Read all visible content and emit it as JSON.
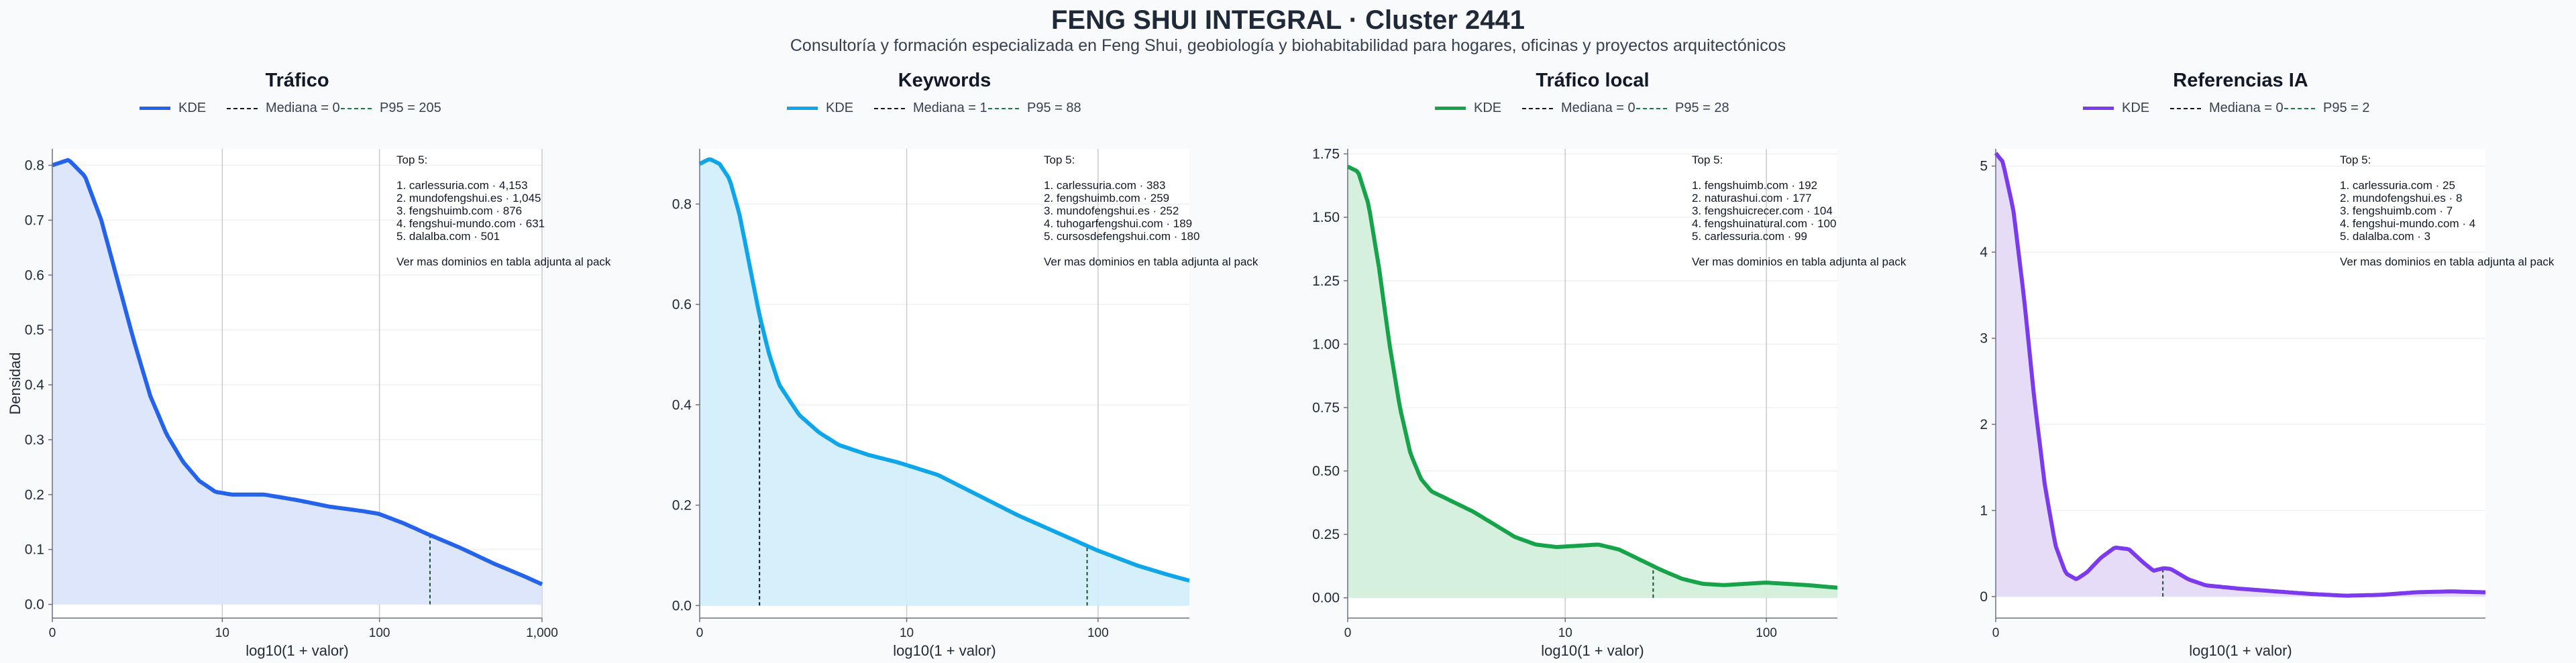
{
  "title": "FENG SHUI INTEGRAL · Cluster 2441",
  "subtitle": "Consultoría y formación especializada en Feng Shui, geobiología y biohabitabilidad para hogares, oficinas y proyectos arquitectónicos",
  "ylabel_shared": "Densidad",
  "chart_data": [
    {
      "type": "line",
      "title": "Tráfico",
      "xlabel": "log10(1 + valor)",
      "ylabel": "Densidad",
      "x_scale": "log10(1+x)",
      "x_ticks": [
        0,
        10,
        100,
        1000
      ],
      "x_tick_labels": [
        "0",
        "10",
        "100",
        "1,000"
      ],
      "x_max": 1000,
      "ylim": [
        -0.025,
        0.83
      ],
      "y_ticks": [
        0.0,
        0.1,
        0.2,
        0.3,
        0.4,
        0.5,
        0.6,
        0.7,
        0.8
      ],
      "y_tick_labels": [
        "0.0",
        "0.1",
        "0.2",
        "0.3",
        "0.4",
        "0.5",
        "0.6",
        "0.7",
        "0.8"
      ],
      "color": "#2563eb",
      "fill": "#dbe5fb",
      "legend": {
        "kde": "KDE",
        "median": "Mediana = 0",
        "p95": "P95 = 205"
      },
      "median": 0,
      "p95": 205,
      "kde": [
        [
          0,
          0.8
        ],
        [
          0.1,
          0.81
        ],
        [
          0.2,
          0.78
        ],
        [
          0.3,
          0.7
        ],
        [
          0.4,
          0.59
        ],
        [
          0.5,
          0.48
        ],
        [
          0.6,
          0.38
        ],
        [
          0.7,
          0.31
        ],
        [
          0.8,
          0.26
        ],
        [
          0.9,
          0.225
        ],
        [
          1.0,
          0.205
        ],
        [
          1.1,
          0.2
        ],
        [
          1.3,
          0.2
        ],
        [
          1.5,
          0.19
        ],
        [
          1.7,
          0.178
        ],
        [
          1.9,
          0.17
        ],
        [
          2.0,
          0.165
        ],
        [
          2.15,
          0.148
        ],
        [
          2.3,
          0.128
        ],
        [
          2.5,
          0.103
        ],
        [
          2.7,
          0.075
        ],
        [
          2.9,
          0.05
        ],
        [
          3.05,
          0.03
        ]
      ],
      "top5": [
        "Top 5:",
        "",
        "1. carlessuria.com · 4,153",
        "2. mundofengshui.es · 1,045",
        "3. fengshuimb.com · 876",
        "4. fengshui-mundo.com · 631",
        "5. dalalba.com · 501",
        "",
        "Ver mas dominios en tabla adjunta al pack"
      ]
    },
    {
      "type": "line",
      "title": "Keywords",
      "xlabel": "log10(1 + valor)",
      "ylabel": "",
      "x_scale": "log10(1+x)",
      "x_ticks": [
        0,
        10,
        100
      ],
      "x_tick_labels": [
        "0",
        "10",
        "100"
      ],
      "x_max": 290,
      "ylim": [
        -0.025,
        0.91
      ],
      "y_ticks": [
        0.0,
        0.2,
        0.4,
        0.6,
        0.8
      ],
      "y_tick_labels": [
        "0.0",
        "0.2",
        "0.4",
        "0.6",
        "0.8"
      ],
      "color": "#0ea5e9",
      "fill": "#d3eefb",
      "legend": {
        "kde": "KDE",
        "median": "Mediana = 1",
        "p95": "P95 = 88"
      },
      "median": 1,
      "p95": 88,
      "kde": [
        [
          0,
          0.88
        ],
        [
          0.05,
          0.89
        ],
        [
          0.1,
          0.88
        ],
        [
          0.15,
          0.85
        ],
        [
          0.2,
          0.78
        ],
        [
          0.25,
          0.68
        ],
        [
          0.3,
          0.58
        ],
        [
          0.35,
          0.5
        ],
        [
          0.4,
          0.44
        ],
        [
          0.5,
          0.38
        ],
        [
          0.6,
          0.345
        ],
        [
          0.7,
          0.32
        ],
        [
          0.85,
          0.3
        ],
        [
          1.0,
          0.285
        ],
        [
          1.2,
          0.26
        ],
        [
          1.4,
          0.22
        ],
        [
          1.6,
          0.18
        ],
        [
          1.8,
          0.145
        ],
        [
          2.0,
          0.11
        ],
        [
          2.2,
          0.08
        ],
        [
          2.35,
          0.062
        ],
        [
          2.46,
          0.05
        ]
      ],
      "top5": [
        "Top 5:",
        "",
        "1. carlessuria.com · 383",
        "2. fengshuimb.com · 259",
        "3. mundofengshui.es · 252",
        "4. tuhogarfengshui.com · 189",
        "5. cursosdefengshui.com · 180",
        "",
        "Ver mas dominios en tabla adjunta al pack"
      ]
    },
    {
      "type": "line",
      "title": "Tráfico local",
      "xlabel": "log10(1 + valor)",
      "ylabel": "",
      "x_scale": "log10(1+x)",
      "x_ticks": [
        0,
        10,
        100
      ],
      "x_tick_labels": [
        "0",
        "10",
        "100"
      ],
      "x_max": 220,
      "ylim": [
        -0.08,
        1.77
      ],
      "y_ticks": [
        0.0,
        0.25,
        0.5,
        0.75,
        1.0,
        1.25,
        1.5,
        1.75
      ],
      "y_tick_labels": [
        "0.00",
        "0.25",
        "0.50",
        "0.75",
        "1.00",
        "1.25",
        "1.50",
        "1.75"
      ],
      "color": "#16a34a",
      "fill": "#d4efdc",
      "legend": {
        "kde": "KDE",
        "median": "Mediana = 0",
        "p95": "P95 = 28"
      },
      "median": 0,
      "p95": 28,
      "kde": [
        [
          0,
          1.7
        ],
        [
          0.05,
          1.68
        ],
        [
          0.1,
          1.55
        ],
        [
          0.15,
          1.3
        ],
        [
          0.2,
          1.0
        ],
        [
          0.25,
          0.75
        ],
        [
          0.3,
          0.57
        ],
        [
          0.35,
          0.47
        ],
        [
          0.4,
          0.42
        ],
        [
          0.5,
          0.38
        ],
        [
          0.6,
          0.34
        ],
        [
          0.7,
          0.29
        ],
        [
          0.8,
          0.24
        ],
        [
          0.9,
          0.21
        ],
        [
          1.0,
          0.2
        ],
        [
          1.1,
          0.205
        ],
        [
          1.2,
          0.21
        ],
        [
          1.3,
          0.19
        ],
        [
          1.4,
          0.15
        ],
        [
          1.5,
          0.11
        ],
        [
          1.6,
          0.075
        ],
        [
          1.7,
          0.055
        ],
        [
          1.8,
          0.05
        ],
        [
          1.9,
          0.055
        ],
        [
          2.0,
          0.06
        ],
        [
          2.1,
          0.055
        ],
        [
          2.2,
          0.05
        ],
        [
          2.34,
          0.04
        ]
      ],
      "top5": [
        "Top 5:",
        "",
        "1. fengshuimb.com · 192",
        "2. naturashui.com · 177",
        "3. fengshuicrecer.com · 104",
        "4. fengshuinatural.com · 100",
        "5. carlessuria.com · 99",
        "",
        "Ver mas dominios en tabla adjunta al pack"
      ]
    },
    {
      "type": "line",
      "title": "Referencias IA",
      "xlabel": "log10(1 + valor)",
      "ylabel": "",
      "x_scale": "log10(1+x)",
      "x_ticks": [
        0
      ],
      "x_tick_labels": [
        "0"
      ],
      "x_max": 24,
      "ylim": [
        -0.25,
        5.2
      ],
      "y_ticks": [
        0,
        1,
        2,
        3,
        4,
        5
      ],
      "y_tick_labels": [
        "0",
        "1",
        "2",
        "3",
        "4",
        "5"
      ],
      "color": "#7c3aed",
      "fill": "#e5daf8",
      "legend": {
        "kde": "KDE",
        "median": "Mediana = 0",
        "p95": "P95 = 2"
      },
      "median": 0,
      "p95": 2,
      "kde": [
        [
          0,
          5.15
        ],
        [
          0.02,
          5.05
        ],
        [
          0.05,
          4.5
        ],
        [
          0.08,
          3.5
        ],
        [
          0.11,
          2.3
        ],
        [
          0.14,
          1.3
        ],
        [
          0.17,
          0.6
        ],
        [
          0.2,
          0.27
        ],
        [
          0.23,
          0.2
        ],
        [
          0.26,
          0.28
        ],
        [
          0.3,
          0.45
        ],
        [
          0.34,
          0.57
        ],
        [
          0.38,
          0.55
        ],
        [
          0.42,
          0.4
        ],
        [
          0.45,
          0.3
        ],
        [
          0.48,
          0.33
        ],
        [
          0.5,
          0.32
        ],
        [
          0.55,
          0.2
        ],
        [
          0.6,
          0.13
        ],
        [
          0.7,
          0.09
        ],
        [
          0.8,
          0.06
        ],
        [
          0.9,
          0.03
        ],
        [
          1.0,
          0.01
        ],
        [
          1.1,
          0.02
        ],
        [
          1.2,
          0.05
        ],
        [
          1.3,
          0.06
        ],
        [
          1.39,
          0.05
        ]
      ],
      "top5": [
        "Top 5:",
        "",
        "1. carlessuria.com · 25",
        "2. mundofengshui.es · 8",
        "3. fengshuimb.com · 7",
        "4. fengshui-mundo.com · 4",
        "5. dalalba.com · 3",
        "",
        "Ver mas dominios en tabla adjunta al pack"
      ]
    }
  ]
}
